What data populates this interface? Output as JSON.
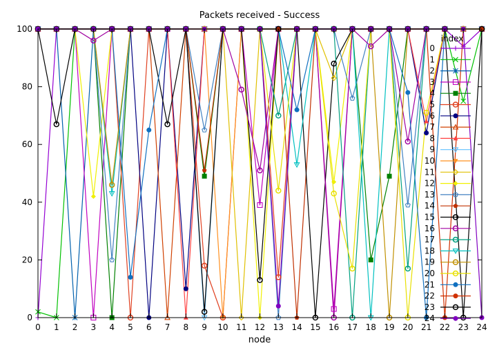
{
  "chart_data": {
    "type": "line",
    "title": "Packets received - Success",
    "xlabel": "node",
    "ylabel": "",
    "xlim": [
      0,
      24
    ],
    "ylim": [
      0,
      100
    ],
    "x_ticks": [
      "0",
      "1",
      "2",
      "3",
      "4",
      "5",
      "6",
      "7",
      "8",
      "9",
      "10",
      "11",
      "12",
      "13",
      "14",
      "15",
      "16",
      "17",
      "18",
      "19",
      "20",
      "21",
      "22",
      "23",
      "24"
    ],
    "y_ticks": [
      "0",
      "20",
      "40",
      "60",
      "80",
      "100"
    ],
    "legend_title": "index",
    "legend_position": "right",
    "x": [
      0,
      1,
      2,
      3,
      4,
      5,
      6,
      7,
      8,
      9,
      10,
      11,
      12,
      13,
      14,
      15,
      16,
      17,
      18,
      19,
      20,
      21,
      22,
      23,
      24
    ],
    "series": [
      {
        "name": "0",
        "color": "#9400d3",
        "marker": "plus",
        "values": [
          0,
          100,
          100,
          100,
          100,
          100,
          100,
          100,
          100,
          100,
          100,
          100,
          100,
          100,
          100,
          100,
          100,
          100,
          100,
          100,
          100,
          100,
          100,
          94,
          100
        ]
      },
      {
        "name": "1",
        "color": "#00c000",
        "marker": "cross",
        "values": [
          2,
          0,
          100,
          100,
          100,
          100,
          100,
          100,
          100,
          100,
          100,
          100,
          100,
          100,
          100,
          100,
          100,
          100,
          100,
          100,
          100,
          100,
          100,
          75,
          100
        ]
      },
      {
        "name": "2",
        "color": "#0060ad",
        "marker": "star",
        "values": [
          100,
          100,
          0,
          100,
          100,
          100,
          100,
          100,
          100,
          100,
          100,
          100,
          100,
          100,
          100,
          100,
          100,
          100,
          100,
          100,
          100,
          100,
          100,
          100,
          100
        ]
      },
      {
        "name": "3",
        "color": "#c000c0",
        "marker": "box",
        "values": [
          100,
          100,
          100,
          0,
          100,
          100,
          100,
          100,
          100,
          100,
          100,
          100,
          39,
          100,
          100,
          100,
          3,
          100,
          100,
          100,
          100,
          100,
          100,
          100,
          100
        ]
      },
      {
        "name": "4",
        "color": "#008000",
        "marker": "fbox",
        "values": [
          100,
          100,
          100,
          100,
          0,
          100,
          100,
          100,
          100,
          49,
          100,
          100,
          100,
          100,
          100,
          100,
          100,
          100,
          20,
          49,
          100,
          100,
          100,
          100,
          100
        ]
      },
      {
        "name": "5",
        "color": "#e04020",
        "marker": "circle",
        "values": [
          100,
          100,
          100,
          100,
          100,
          0,
          100,
          100,
          100,
          18,
          0,
          100,
          100,
          14,
          100,
          100,
          100,
          100,
          100,
          100,
          100,
          100,
          100,
          100,
          100
        ]
      },
      {
        "name": "6",
        "color": "#000080",
        "marker": "fcircle",
        "values": [
          100,
          100,
          100,
          100,
          100,
          100,
          0,
          100,
          10,
          100,
          100,
          100,
          100,
          100,
          100,
          100,
          100,
          100,
          100,
          100,
          100,
          64,
          100,
          100,
          100
        ]
      },
      {
        "name": "7",
        "color": "#d04000",
        "marker": "tri",
        "values": [
          100,
          100,
          100,
          100,
          100,
          100,
          100,
          0,
          100,
          100,
          100,
          100,
          100,
          100,
          100,
          100,
          100,
          100,
          100,
          100,
          100,
          100,
          100,
          100,
          100
        ]
      },
      {
        "name": "8",
        "color": "#ff4040",
        "marker": "ftri",
        "values": [
          100,
          100,
          100,
          100,
          100,
          100,
          100,
          100,
          0,
          100,
          100,
          100,
          100,
          100,
          100,
          100,
          100,
          100,
          100,
          100,
          100,
          68,
          100,
          100,
          100
        ]
      },
      {
        "name": "9",
        "color": "#60c0ff",
        "marker": "itri",
        "values": [
          100,
          100,
          100,
          100,
          100,
          100,
          100,
          100,
          100,
          0,
          100,
          100,
          100,
          100,
          100,
          100,
          100,
          100,
          100,
          100,
          100,
          100,
          100,
          100,
          100
        ]
      },
      {
        "name": "10",
        "color": "#ff9020",
        "marker": "fitri",
        "values": [
          100,
          100,
          100,
          100,
          100,
          100,
          100,
          100,
          100,
          100,
          0,
          100,
          100,
          100,
          100,
          100,
          100,
          100,
          100,
          100,
          100,
          100,
          100,
          100,
          100
        ]
      },
      {
        "name": "11",
        "color": "#e0c000",
        "marker": "diamond",
        "values": [
          100,
          100,
          100,
          100,
          100,
          100,
          100,
          100,
          100,
          100,
          100,
          0,
          100,
          100,
          100,
          100,
          83,
          100,
          100,
          100,
          100,
          100,
          100,
          100,
          100
        ]
      },
      {
        "name": "12",
        "color": "#f0f000",
        "marker": "fdiamond",
        "values": [
          100,
          100,
          100,
          42,
          100,
          100,
          100,
          100,
          100,
          100,
          100,
          100,
          0,
          100,
          100,
          100,
          47,
          100,
          100,
          100,
          100,
          100,
          100,
          100,
          100
        ]
      },
      {
        "name": "13",
        "color": "#4080c0",
        "marker": "pentagon",
        "values": [
          100,
          100,
          100,
          100,
          20,
          100,
          100,
          100,
          100,
          65,
          100,
          100,
          100,
          0,
          100,
          100,
          100,
          76,
          100,
          100,
          39,
          100,
          100,
          100,
          100
        ]
      },
      {
        "name": "14",
        "color": "#c03000",
        "marker": "fpentagon",
        "values": [
          100,
          100,
          100,
          100,
          100,
          100,
          100,
          100,
          100,
          51,
          100,
          100,
          100,
          100,
          0,
          100,
          100,
          100,
          100,
          100,
          100,
          100,
          100,
          100,
          100
        ]
      },
      {
        "name": "15",
        "color": "#000000",
        "marker": "circle",
        "values": [
          100,
          67,
          100,
          100,
          100,
          100,
          100,
          67,
          100,
          100,
          100,
          100,
          13,
          100,
          100,
          0,
          88,
          100,
          100,
          100,
          100,
          100,
          100,
          100,
          100
        ]
      },
      {
        "name": "16",
        "color": "#a000a0",
        "marker": "circle",
        "values": [
          100,
          100,
          100,
          96,
          100,
          100,
          100,
          100,
          100,
          100,
          100,
          79,
          51,
          100,
          100,
          100,
          0,
          100,
          94,
          100,
          61,
          100,
          100,
          100,
          100
        ]
      },
      {
        "name": "17",
        "color": "#00a080",
        "marker": "circle",
        "values": [
          100,
          100,
          100,
          100,
          100,
          100,
          100,
          100,
          100,
          100,
          100,
          100,
          100,
          70,
          100,
          100,
          100,
          0,
          100,
          100,
          17,
          100,
          100,
          100,
          100
        ]
      },
      {
        "name": "18",
        "color": "#00c0c0",
        "marker": "itri",
        "values": [
          100,
          100,
          100,
          100,
          43,
          100,
          100,
          100,
          100,
          100,
          100,
          100,
          100,
          100,
          53,
          100,
          100,
          100,
          0,
          100,
          100,
          100,
          100,
          100,
          100
        ]
      },
      {
        "name": "19",
        "color": "#c09000",
        "marker": "circle",
        "values": [
          100,
          100,
          100,
          100,
          46,
          100,
          100,
          100,
          100,
          100,
          100,
          100,
          100,
          100,
          100,
          100,
          100,
          100,
          100,
          0,
          100,
          100,
          100,
          100,
          100
        ]
      },
      {
        "name": "20",
        "color": "#e8e000",
        "marker": "circle",
        "values": [
          100,
          100,
          100,
          100,
          100,
          100,
          100,
          100,
          100,
          100,
          100,
          100,
          100,
          44,
          100,
          100,
          43,
          17,
          100,
          100,
          0,
          71,
          100,
          100,
          100
        ]
      },
      {
        "name": "21",
        "color": "#1070c0",
        "marker": "fcircle",
        "values": [
          100,
          100,
          100,
          100,
          100,
          14,
          65,
          100,
          100,
          100,
          100,
          100,
          100,
          100,
          72,
          100,
          100,
          100,
          100,
          100,
          78,
          0,
          100,
          100,
          100
        ]
      },
      {
        "name": "22",
        "color": "#d03000",
        "marker": "fcircle",
        "values": [
          100,
          100,
          100,
          100,
          100,
          100,
          100,
          100,
          100,
          100,
          100,
          100,
          100,
          100,
          100,
          100,
          100,
          100,
          100,
          100,
          100,
          100,
          0,
          100,
          100
        ]
      },
      {
        "name": "23",
        "color": "#000000",
        "marker": "circle",
        "values": [
          100,
          100,
          100,
          100,
          100,
          100,
          100,
          100,
          100,
          2,
          100,
          100,
          100,
          100,
          100,
          100,
          100,
          100,
          100,
          100,
          100,
          100,
          100,
          0,
          100
        ]
      },
      {
        "name": "24",
        "color": "#8000c0",
        "marker": "fcircle",
        "values": [
          100,
          100,
          100,
          100,
          100,
          100,
          100,
          100,
          100,
          100,
          100,
          100,
          100,
          4,
          100,
          100,
          100,
          100,
          100,
          100,
          100,
          100,
          100,
          100,
          0
        ]
      }
    ]
  }
}
